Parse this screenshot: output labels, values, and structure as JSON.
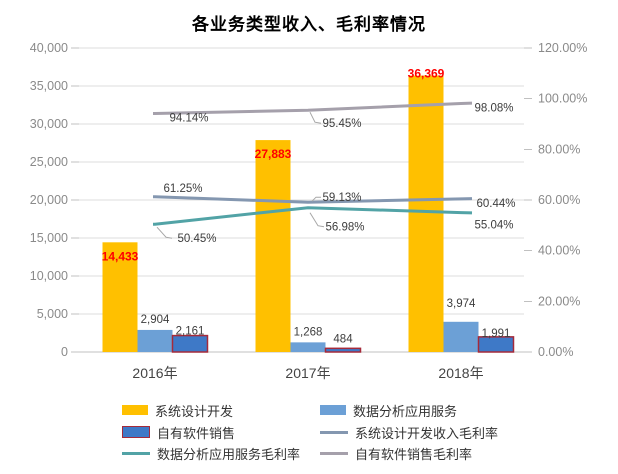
{
  "title": "各业务类型收入、毛利率情况",
  "chart_data": {
    "type": "bar+line combo",
    "categories": [
      "2016年",
      "2017年",
      "2018年"
    ],
    "bar_series": [
      {
        "name": "系统设计开发",
        "color": "#FFC000",
        "values": [
          14433,
          27883,
          36369
        ],
        "labels": [
          "14,433",
          "27,883",
          "36,369"
        ],
        "label_color": "#FF0000",
        "label_position": "inside-end"
      },
      {
        "name": "数据分析应用服务",
        "color": "#6CA0D6",
        "values": [
          2904,
          1268,
          3974
        ],
        "labels": [
          "2,904",
          "1,268",
          "3,974"
        ],
        "label_color": "#3d3d3d",
        "label_position": "outside-end"
      },
      {
        "name": "自有软件销售",
        "color": "#3E79C7",
        "border_color": "#A52A3A",
        "values": [
          2161,
          484,
          1991
        ],
        "labels": [
          "2,161",
          "484",
          "1,991"
        ],
        "label_color": "#3d3d3d",
        "label_position": "outside-end"
      }
    ],
    "line_series": [
      {
        "name": "系统设计开发收入毛利率",
        "color": "#8497B0",
        "values": [
          61.25,
          59.13,
          60.44
        ],
        "labels": [
          "61.25%",
          "59.13%",
          "60.44%"
        ]
      },
      {
        "name": "数据分析应用服务毛利率",
        "color": "#52A3A6",
        "values": [
          50.45,
          56.98,
          55.04
        ],
        "labels": [
          "50.45%",
          "56.98%",
          "55.04%"
        ]
      },
      {
        "name": "自有软件销售毛利率",
        "color": "#A5A0AB",
        "values": [
          94.14,
          95.45,
          98.08
        ],
        "labels": [
          "94.14%",
          "95.45%",
          "98.08%"
        ]
      }
    ],
    "left_axis": {
      "min": 0,
      "max": 40000,
      "step": 5000,
      "ticks": [
        "40,000",
        "35,000",
        "30,000",
        "25,000",
        "20,000",
        "15,000",
        "10,000",
        "5,000",
        "0"
      ]
    },
    "right_axis": {
      "min": 0,
      "max": 1.2,
      "step": 0.2,
      "ticks": [
        "120.00%",
        "100.00%",
        "80.00%",
        "60.00%",
        "40.00%",
        "20.00%",
        "0.00%"
      ]
    },
    "grid": true,
    "legend_position": "bottom"
  },
  "legend": {
    "items": [
      {
        "label": "系统设计开发",
        "swatch": "bar",
        "color": "#FFC000"
      },
      {
        "label": "数据分析应用服务",
        "swatch": "bar",
        "color": "#6CA0D6"
      },
      {
        "label": "自有软件销售",
        "swatch": "bar",
        "color": "#3E79C7",
        "border_color": "#A52A3A"
      },
      {
        "label": "系统设计开发收入毛利率",
        "swatch": "line",
        "color": "#8497B0"
      },
      {
        "label": "数据分析应用服务毛利率",
        "swatch": "line",
        "color": "#52A3A6"
      },
      {
        "label": "自有软件销售毛利率",
        "swatch": "line",
        "color": "#A5A0AB"
      }
    ]
  }
}
